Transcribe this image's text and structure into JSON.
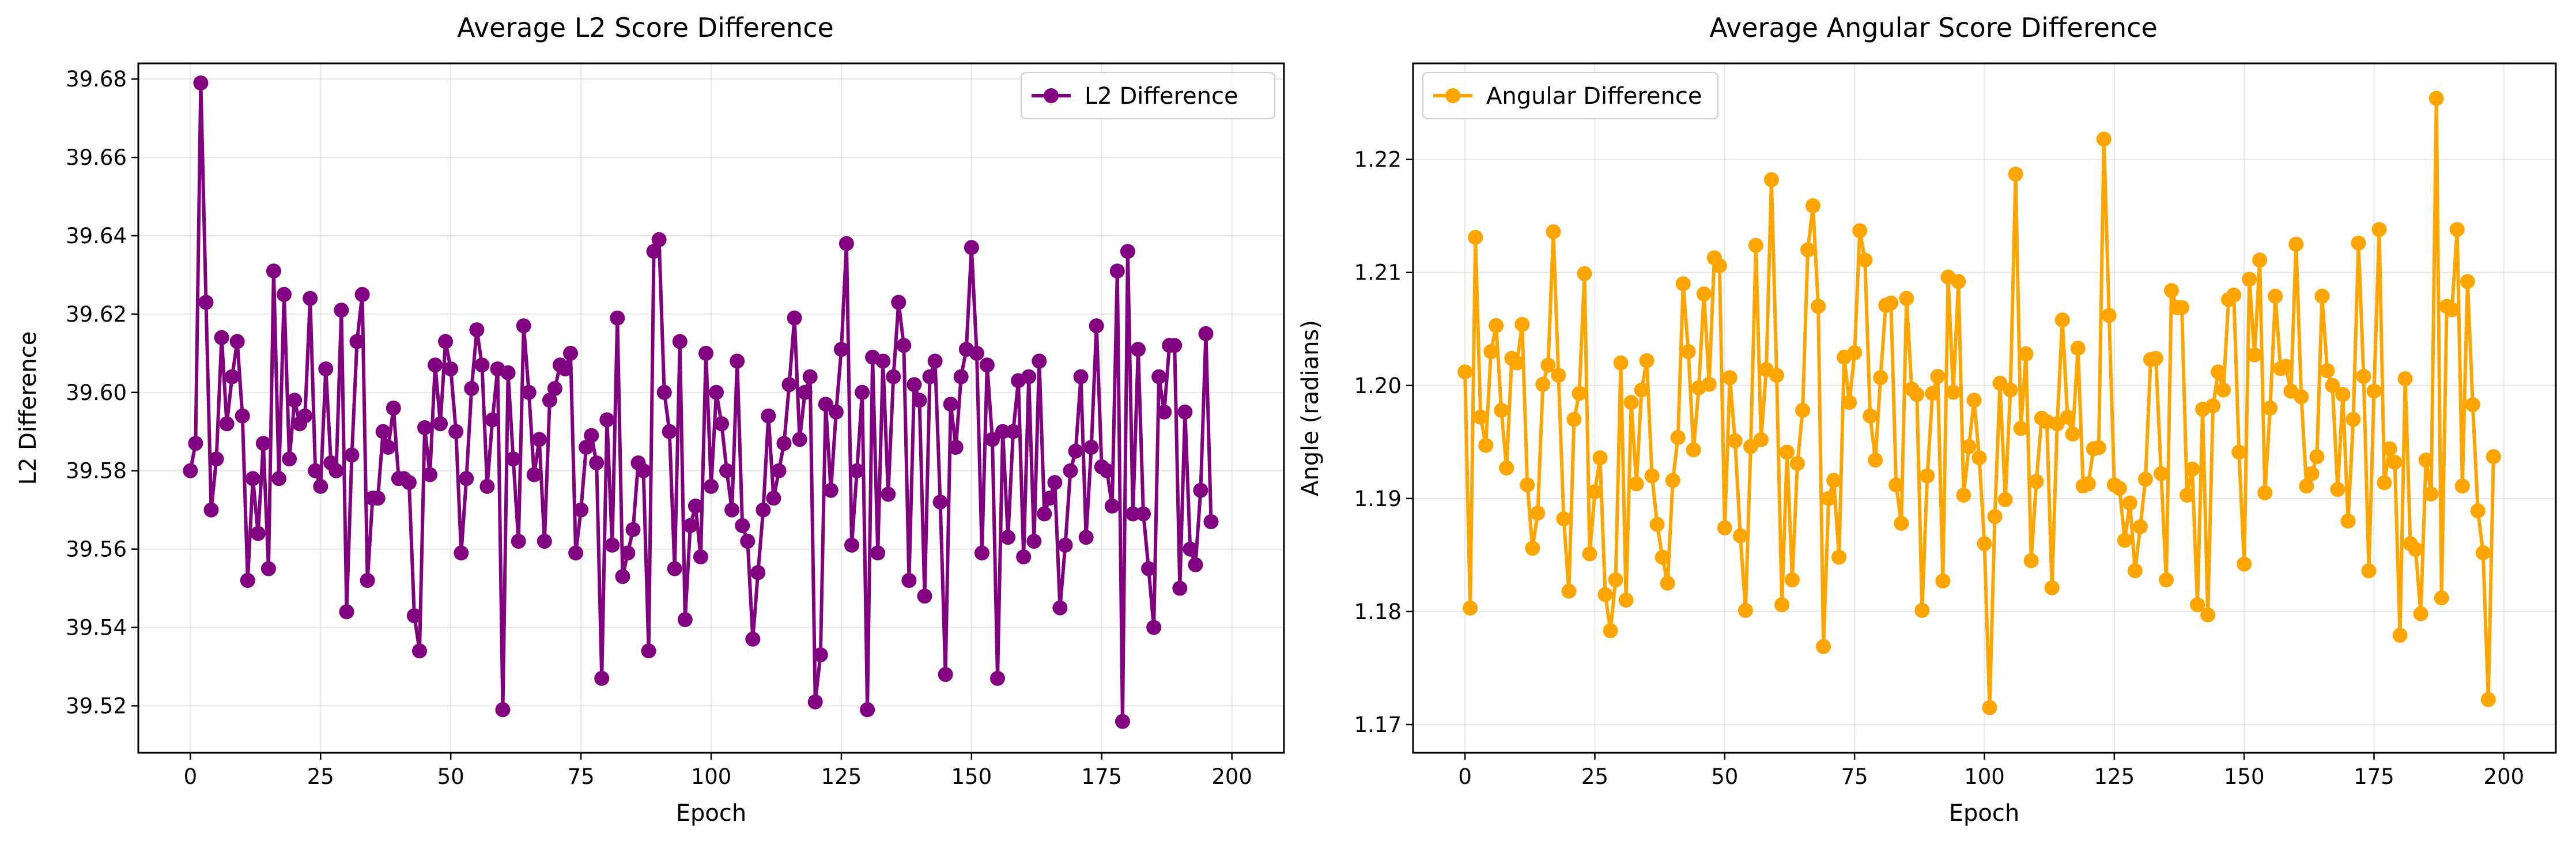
{
  "chart_data": [
    {
      "type": "line",
      "title": "Average L2 Score Difference",
      "xlabel": "Epoch",
      "ylabel": "L2 Difference",
      "xlim": [
        -10,
        210
      ],
      "ylim": [
        39.508,
        39.684
      ],
      "xticks": [
        0,
        25,
        50,
        75,
        100,
        125,
        150,
        175,
        200
      ],
      "yticks": [
        39.52,
        39.54,
        39.56,
        39.58,
        39.6,
        39.62,
        39.64,
        39.66,
        39.68
      ],
      "xtick_labels": [
        "0",
        "25",
        "50",
        "75",
        "100",
        "125",
        "150",
        "175",
        "200"
      ],
      "ytick_labels": [
        "39.52",
        "39.54",
        "39.56",
        "39.58",
        "39.60",
        "39.62",
        "39.64",
        "39.66",
        "39.68"
      ],
      "grid": true,
      "legend": "top-right",
      "color": "#800080",
      "series": [
        {
          "name": "L2 Difference",
          "x_start": 0,
          "x_step": 1,
          "values": [
            39.58,
            39.587,
            39.679,
            39.623,
            39.57,
            39.583,
            39.614,
            39.592,
            39.604,
            39.613,
            39.594,
            39.552,
            39.578,
            39.564,
            39.587,
            39.555,
            39.631,
            39.578,
            39.625,
            39.583,
            39.598,
            39.592,
            39.594,
            39.624,
            39.58,
            39.576,
            39.606,
            39.582,
            39.58,
            39.621,
            39.544,
            39.584,
            39.613,
            39.625,
            39.552,
            39.573,
            39.573,
            39.59,
            39.586,
            39.596,
            39.578,
            39.578,
            39.577,
            39.543,
            39.534,
            39.591,
            39.579,
            39.607,
            39.592,
            39.613,
            39.606,
            39.59,
            39.559,
            39.578,
            39.601,
            39.616,
            39.607,
            39.576,
            39.593,
            39.606,
            39.519,
            39.605,
            39.583,
            39.562,
            39.617,
            39.6,
            39.579,
            39.588,
            39.562,
            39.598,
            39.601,
            39.607,
            39.606,
            39.61,
            39.559,
            39.57,
            39.586,
            39.589,
            39.582,
            39.527,
            39.593,
            39.561,
            39.619,
            39.553,
            39.559,
            39.565,
            39.582,
            39.58,
            39.534,
            39.636,
            39.639,
            39.6,
            39.59,
            39.555,
            39.613,
            39.542,
            39.566,
            39.571,
            39.558,
            39.61,
            39.576,
            39.6,
            39.592,
            39.58,
            39.57,
            39.608,
            39.566,
            39.562,
            39.537,
            39.554,
            39.57,
            39.594,
            39.573,
            39.58,
            39.587,
            39.602,
            39.619,
            39.588,
            39.6,
            39.604,
            39.521,
            39.533,
            39.597,
            39.575,
            39.595,
            39.611,
            39.638,
            39.561,
            39.58,
            39.6,
            39.519,
            39.609,
            39.559,
            39.608,
            39.574,
            39.604,
            39.623,
            39.612,
            39.552,
            39.602,
            39.598,
            39.548,
            39.604,
            39.608,
            39.572,
            39.528,
            39.597,
            39.586,
            39.604,
            39.611,
            39.637,
            39.61,
            39.559,
            39.607,
            39.588,
            39.527,
            39.59,
            39.563,
            39.59,
            39.603,
            39.558,
            39.604,
            39.562,
            39.608,
            39.569,
            39.573,
            39.577,
            39.545,
            39.561,
            39.58,
            39.585,
            39.604,
            39.563,
            39.586,
            39.617,
            39.581,
            39.58,
            39.571,
            39.631,
            39.516,
            39.636,
            39.569,
            39.611,
            39.569,
            39.555,
            39.54,
            39.604,
            39.595,
            39.612,
            39.612,
            39.55,
            39.595,
            39.56,
            39.556,
            39.575,
            39.615,
            39.567
          ]
        }
      ]
    },
    {
      "type": "line",
      "title": "Average Angular Score Difference",
      "xlabel": "Epoch",
      "ylabel": "Angle (radians)",
      "xlim": [
        -10,
        210
      ],
      "ylim": [
        1.1675,
        1.2285
      ],
      "xticks": [
        0,
        25,
        50,
        75,
        100,
        125,
        150,
        175,
        200
      ],
      "yticks": [
        1.17,
        1.18,
        1.19,
        1.2,
        1.21,
        1.22
      ],
      "xtick_labels": [
        "0",
        "25",
        "50",
        "75",
        "100",
        "125",
        "150",
        "175",
        "200"
      ],
      "ytick_labels": [
        "1.17",
        "1.18",
        "1.19",
        "1.20",
        "1.21",
        "1.22"
      ],
      "grid": true,
      "legend": "top-left",
      "color": "#FFA500",
      "series": [
        {
          "name": "Angular Difference",
          "x_start": 0,
          "x_step": 1,
          "values": [
            1.2012,
            1.1803,
            1.2131,
            1.1972,
            1.1947,
            1.203,
            1.2053,
            1.1978,
            1.1927,
            1.2024,
            1.202,
            1.2054,
            1.1912,
            1.1856,
            1.1887,
            1.2001,
            1.2018,
            1.2136,
            1.2009,
            1.1882,
            1.1818,
            1.197,
            1.1993,
            1.2099,
            1.1851,
            1.1906,
            1.1936,
            1.1815,
            1.1783,
            1.1828,
            1.202,
            1.181,
            1.1985,
            1.1913,
            1.1996,
            1.2022,
            1.192,
            1.1877,
            1.1848,
            1.1825,
            1.1916,
            1.1954,
            1.209,
            1.203,
            1.1943,
            1.1998,
            1.2081,
            1.2001,
            1.2113,
            1.2106,
            1.1874,
            1.2007,
            1.1951,
            1.1867,
            1.1801,
            1.1946,
            1.2124,
            1.1952,
            1.2014,
            1.2182,
            1.2009,
            1.1806,
            1.1941,
            1.1828,
            1.1931,
            1.1978,
            1.212,
            1.2159,
            1.207,
            1.1769,
            1.19,
            1.1916,
            1.1848,
            1.2025,
            1.1985,
            1.2029,
            1.2137,
            1.2111,
            1.1973,
            1.1934,
            1.2007,
            1.2071,
            1.2073,
            1.1912,
            1.1878,
            1.2077,
            1.1997,
            1.1992,
            1.1801,
            1.192,
            1.1993,
            1.2008,
            1.1827,
            1.2096,
            1.1994,
            1.2092,
            1.1903,
            1.1946,
            1.1987,
            1.1936,
            1.186,
            1.1715,
            1.1884,
            1.2002,
            1.1899,
            1.1996,
            1.2187,
            1.1962,
            1.2028,
            1.1845,
            1.1915,
            1.1971,
            1.1968,
            1.1821,
            1.1966,
            1.2058,
            1.1972,
            1.1957,
            1.2033,
            1.1911,
            1.1913,
            1.1944,
            1.1945,
            1.2218,
            1.2062,
            1.1912,
            1.1909,
            1.1863,
            1.1896,
            1.1836,
            1.1875,
            1.1917,
            1.2023,
            1.2024,
            1.1922,
            1.1828,
            1.2084,
            1.2069,
            1.2069,
            1.1903,
            1.1926,
            1.1806,
            1.1979,
            1.1797,
            1.1982,
            1.2012,
            1.1996,
            1.2076,
            1.208,
            1.1941,
            1.1842,
            1.2094,
            1.2027,
            1.2111,
            1.1905,
            1.198,
            1.2079,
            1.2015,
            1.2017,
            1.1995,
            1.2125,
            1.199,
            1.1911,
            1.1922,
            1.1937,
            1.2079,
            1.2013,
            1.2,
            1.1908,
            1.1992,
            1.188,
            1.197,
            1.2126,
            1.2008,
            1.1836,
            1.1995,
            1.2138,
            1.1914,
            1.1944,
            1.1932,
            1.1779,
            1.2006,
            1.186,
            1.1855,
            1.1798,
            1.1934,
            1.1904,
            1.2254,
            1.1812,
            1.207,
            1.2067,
            1.2138,
            1.1911,
            1.2092,
            1.1983,
            1.1889,
            1.1852,
            1.1722,
            1.1937
          ]
        }
      ]
    }
  ]
}
